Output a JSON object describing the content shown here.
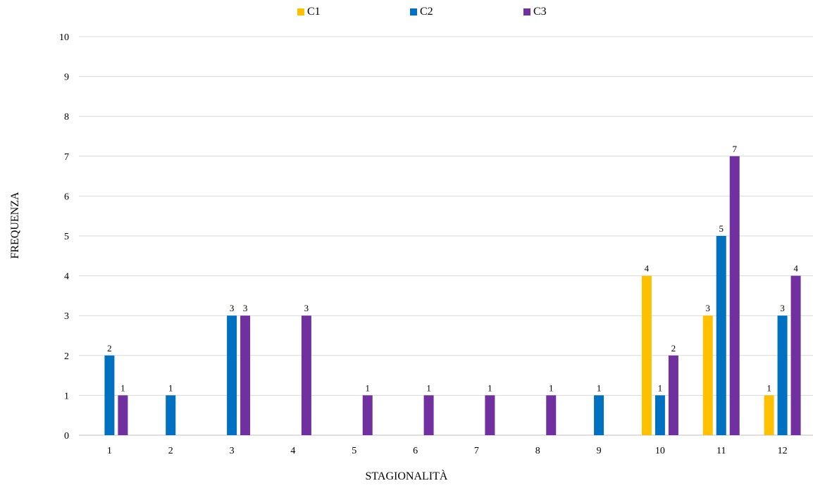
{
  "chart_data": {
    "type": "bar",
    "categories": [
      "1",
      "2",
      "3",
      "4",
      "5",
      "6",
      "7",
      "8",
      "9",
      "10",
      "11",
      "12"
    ],
    "series": [
      {
        "name": "C1",
        "color": "#FFC000",
        "values": [
          null,
          null,
          null,
          null,
          null,
          null,
          null,
          null,
          null,
          4,
          3,
          1
        ]
      },
      {
        "name": "C2",
        "color": "#0070C0",
        "values": [
          2,
          1,
          3,
          null,
          null,
          null,
          null,
          null,
          1,
          1,
          5,
          3
        ]
      },
      {
        "name": "C3",
        "color": "#7030A0",
        "values": [
          1,
          null,
          3,
          3,
          1,
          1,
          1,
          1,
          null,
          2,
          7,
          4
        ]
      }
    ],
    "xlabel": "STAGIONALITÀ",
    "ylabel": "FREQUENZA",
    "ylim": [
      0,
      10
    ],
    "yticks": [
      0,
      1,
      2,
      3,
      4,
      5,
      6,
      7,
      8,
      9,
      10
    ],
    "grid": true,
    "legend": "top"
  }
}
